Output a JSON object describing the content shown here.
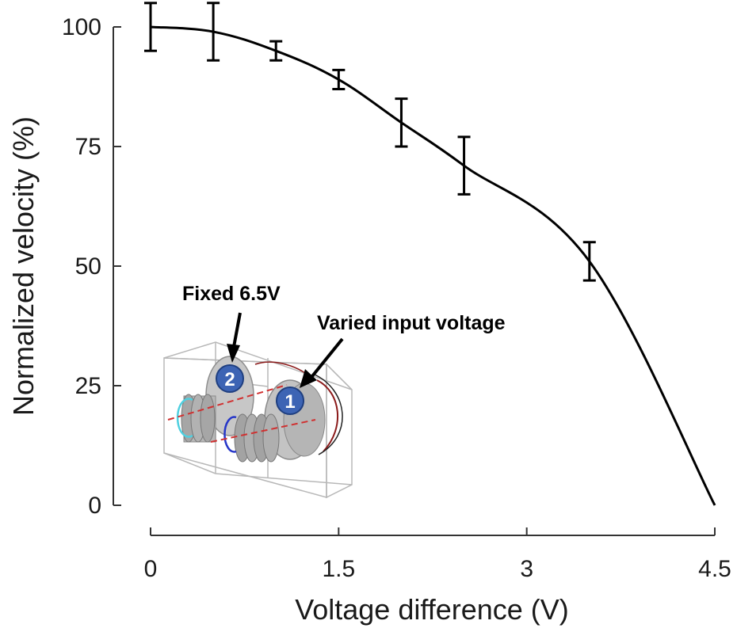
{
  "chart_data": {
    "type": "line",
    "xlabel": "Voltage difference (V)",
    "ylabel": "Normalized velocity (%)",
    "xlim": [
      0,
      4.5
    ],
    "ylim": [
      0,
      100
    ],
    "xticks": [
      "0",
      "1.5",
      "3",
      "4.5"
    ],
    "yticks": [
      "0",
      "25",
      "50",
      "75",
      "100"
    ],
    "grid": false,
    "series": [
      {
        "color": "#000000",
        "x": [
          0,
          0.5,
          1.0,
          1.5,
          2.0,
          2.5,
          3.5,
          4.5
        ],
        "y": [
          100,
          99,
          95,
          89,
          80,
          71,
          51,
          0
        ],
        "err": [
          5,
          6,
          2,
          2,
          5,
          6,
          4,
          null
        ]
      }
    ],
    "annotations": [
      "Fixed 6.5V",
      "Varied input voltage"
    ],
    "inset_markers": [
      "2",
      "1"
    ]
  }
}
